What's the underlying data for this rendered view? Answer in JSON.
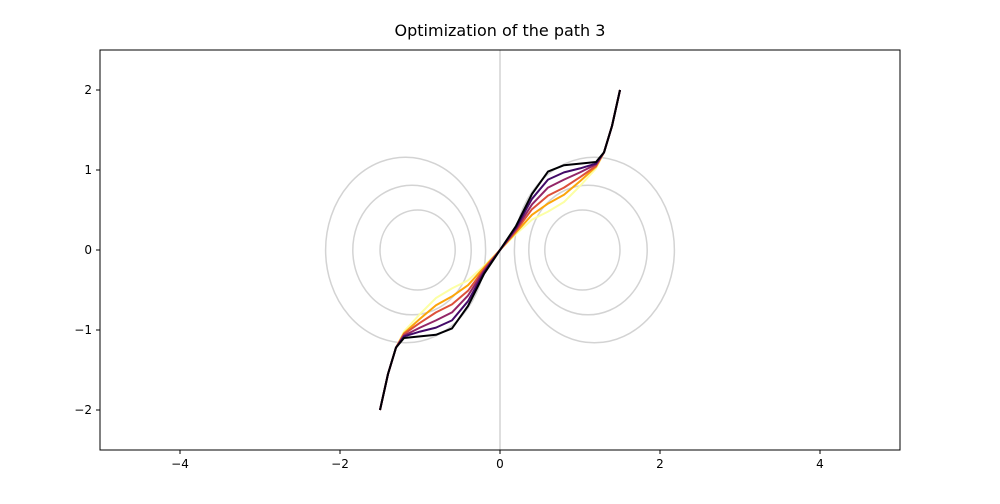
{
  "chart_data": {
    "type": "line",
    "title": "Optimization of the path 3",
    "xlim": [
      -5,
      5
    ],
    "ylim": [
      -2.5,
      2.5
    ],
    "xticks": [
      {
        "value": -4,
        "label": "−4"
      },
      {
        "value": -2,
        "label": "−2"
      },
      0,
      2,
      4
    ],
    "yticks": [
      {
        "value": -2,
        "label": "−2"
      },
      {
        "value": -1,
        "label": "−1"
      },
      0,
      1,
      2
    ],
    "vline": {
      "x": 0,
      "color": "#d3d3d3"
    },
    "contours": {
      "color": "#d3d3d3",
      "shapes": [
        {
          "cx": -1.03,
          "cy": 0,
          "rx": 0.47,
          "ry": 0.5
        },
        {
          "cx": -1.1,
          "cy": 0,
          "rx": 0.74,
          "ry": 0.81
        },
        {
          "cx": -1.18,
          "cy": 0,
          "rx": 1.0,
          "ry": 1.16
        },
        {
          "cx": 1.03,
          "cy": 0,
          "rx": 0.47,
          "ry": 0.5
        },
        {
          "cx": 1.1,
          "cy": 0,
          "rx": 0.74,
          "ry": 0.81
        },
        {
          "cx": 1.18,
          "cy": 0,
          "rx": 1.0,
          "ry": 1.16
        }
      ]
    },
    "x": [
      -1.5,
      -1.4,
      -1.3,
      -1.2,
      -1.0,
      -0.8,
      -0.6,
      -0.4,
      -0.2,
      0,
      0.2,
      0.4,
      0.6,
      0.8,
      1.0,
      1.2,
      1.3,
      1.4,
      1.5
    ],
    "series": [
      {
        "color": "#fcffa4",
        "values": [
          -2,
          -1.55,
          -1.22,
          -1.02,
          -0.8,
          -0.6,
          -0.48,
          -0.38,
          -0.2,
          0,
          0.2,
          0.38,
          0.48,
          0.6,
          0.8,
          1.02,
          1.22,
          1.55,
          2
        ]
      },
      {
        "color": "#fca50a",
        "values": [
          -2,
          -1.55,
          -1.22,
          -1.04,
          -0.86,
          -0.69,
          -0.58,
          -0.44,
          -0.22,
          0,
          0.22,
          0.44,
          0.58,
          0.69,
          0.86,
          1.04,
          1.22,
          1.55,
          2
        ]
      },
      {
        "color": "#dd513a",
        "values": [
          -2,
          -1.55,
          -1.22,
          -1.05,
          -0.91,
          -0.78,
          -0.68,
          -0.51,
          -0.24,
          0,
          0.24,
          0.51,
          0.68,
          0.78,
          0.91,
          1.05,
          1.22,
          1.55,
          2
        ]
      },
      {
        "color": "#932667",
        "values": [
          -2,
          -1.55,
          -1.22,
          -1.07,
          -0.97,
          -0.88,
          -0.78,
          -0.57,
          -0.26,
          0,
          0.26,
          0.57,
          0.78,
          0.88,
          0.97,
          1.07,
          1.22,
          1.55,
          2
        ]
      },
      {
        "color": "#420a68",
        "values": [
          -2,
          -1.55,
          -1.22,
          -1.08,
          -1.02,
          -0.97,
          -0.88,
          -0.64,
          -0.28,
          0,
          0.28,
          0.64,
          0.88,
          0.97,
          1.02,
          1.08,
          1.22,
          1.55,
          2
        ]
      },
      {
        "color": "#000004",
        "values": [
          -2,
          -1.55,
          -1.22,
          -1.1,
          -1.08,
          -1.06,
          -0.98,
          -0.7,
          -0.3,
          0,
          0.3,
          0.7,
          0.98,
          1.06,
          1.08,
          1.1,
          1.22,
          1.55,
          2
        ]
      }
    ]
  }
}
